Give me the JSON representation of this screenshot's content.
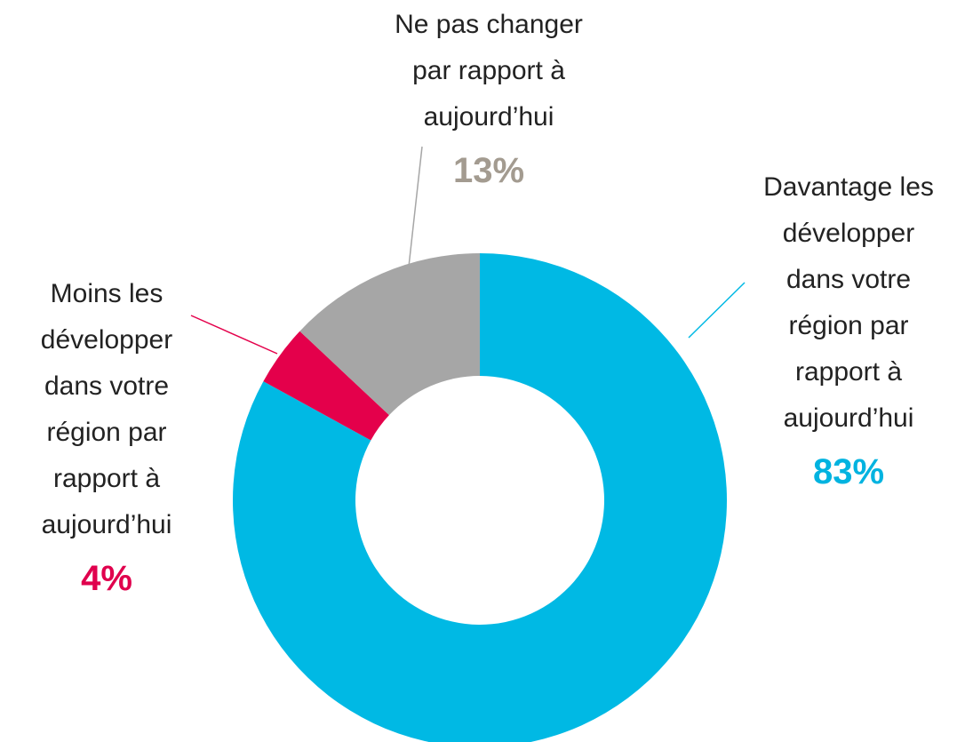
{
  "chart_data": {
    "type": "donut",
    "categories": [
      "Davantage les développer dans votre région par rapport à aujourd’hui",
      "Moins les développer dans votre région par rapport à aujourd’hui",
      "Ne pas changer par rapport à aujourd’hui"
    ],
    "values": [
      83,
      4,
      13
    ],
    "value_labels": [
      "83%",
      "4%",
      "13%"
    ],
    "colors": [
      "#00b9e4",
      "#e4004b",
      "#a6a6a6"
    ],
    "label_colors": [
      "#00b3e0",
      "#e0004d",
      "#a39b90"
    ]
  }
}
